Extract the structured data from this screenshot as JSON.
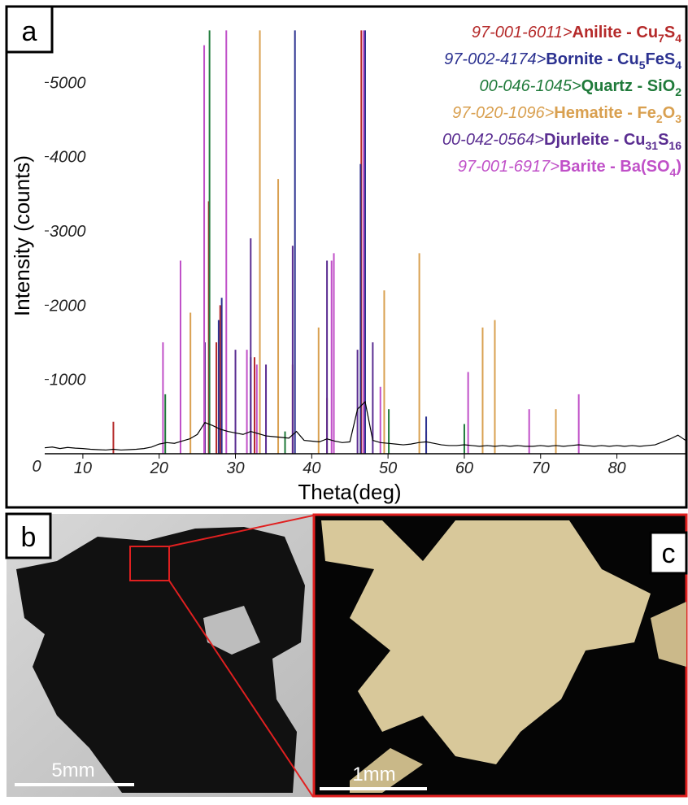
{
  "panels": {
    "a": "a",
    "b": "b",
    "c": "c"
  },
  "scale_bars": {
    "b": "5mm",
    "c": "1mm"
  },
  "chart_data": {
    "type": "xrd",
    "xlabel": "Theta(deg)",
    "ylabel": "Intensity (counts)",
    "xlim": [
      5,
      89
    ],
    "ylim": [
      0,
      6000
    ],
    "xticks": [
      10,
      20,
      30,
      40,
      50,
      60,
      70,
      80
    ],
    "yticks": [
      0,
      1000,
      2000,
      3000,
      4000,
      5000
    ],
    "measured": {
      "color": "#000000",
      "x": [
        5,
        6,
        7,
        8,
        9,
        10,
        11,
        12,
        13,
        14,
        15,
        16,
        17,
        18,
        19,
        20,
        21,
        22,
        23,
        24,
        25,
        26,
        27,
        28,
        29,
        30,
        31,
        32,
        33,
        34,
        35,
        36,
        37,
        38,
        39,
        40,
        41,
        42,
        43,
        44,
        45,
        46,
        47,
        48,
        49,
        50,
        51,
        52,
        53,
        54,
        55,
        56,
        57,
        58,
        59,
        60,
        61,
        62,
        63,
        64,
        65,
        66,
        67,
        68,
        69,
        70,
        71,
        72,
        73,
        74,
        75,
        76,
        77,
        78,
        79,
        80,
        81,
        82,
        83,
        84,
        85,
        86,
        87,
        88,
        89
      ],
      "values": [
        80,
        90,
        70,
        85,
        75,
        70,
        60,
        55,
        50,
        60,
        50,
        55,
        60,
        70,
        90,
        130,
        150,
        140,
        170,
        200,
        260,
        420,
        380,
        330,
        300,
        280,
        260,
        300,
        270,
        240,
        230,
        220,
        210,
        300,
        180,
        170,
        160,
        200,
        170,
        150,
        160,
        600,
        700,
        180,
        150,
        140,
        130,
        120,
        130,
        150,
        160,
        140,
        120,
        110,
        110,
        120,
        110,
        100,
        110,
        100,
        110,
        100,
        110,
        100,
        100,
        110,
        100,
        110,
        100,
        110,
        120,
        110,
        100,
        110,
        100,
        110,
        100,
        110,
        100,
        110,
        120,
        160,
        200,
        250,
        180
      ]
    },
    "series": [
      {
        "code": "97-001-6011>",
        "name_parts": [
          "Anilite - Cu",
          "7",
          "S",
          "4"
        ],
        "color": "#b52a2a",
        "x": [
          14,
          26.5,
          27.5,
          28,
          32.5,
          37.5,
          42,
          46.5,
          55
        ],
        "values": [
          430,
          3400,
          1500,
          2000,
          1300,
          1200,
          750,
          5700,
          300
        ]
      },
      {
        "code": "97-002-4174>",
        "name_parts": [
          "Bornite - Cu",
          "5",
          "FeS",
          "4"
        ],
        "color": "#2b3190",
        "x": [
          26,
          27.8,
          28.2,
          32,
          37.8,
          46.4,
          47,
          55
        ],
        "values": [
          1200,
          1800,
          2100,
          1300,
          5700,
          3900,
          5700,
          500
        ]
      },
      {
        "code": "00-046-1045>",
        "name_parts": [
          "Quartz - SiO",
          "2"
        ],
        "color": "#1f7a3a",
        "x": [
          20.8,
          26.6,
          36.5,
          50.1,
          60
        ],
        "values": [
          800,
          5700,
          300,
          600,
          400
        ]
      },
      {
        "code": "97-020-1096>",
        "name_parts": [
          "Hematite - Fe",
          "2",
          "O",
          "3"
        ],
        "color": "#d9a050",
        "x": [
          24.1,
          33.2,
          35.6,
          40.9,
          49.5,
          54.1,
          62.4,
          64,
          72
        ],
        "values": [
          1900,
          5700,
          3700,
          1700,
          2200,
          2700,
          1700,
          1800,
          600
        ]
      },
      {
        "code": "00-042-0564>",
        "name_parts": [
          "Djurleite - Cu",
          "31",
          "S",
          "16"
        ],
        "color": "#5a2d91",
        "x": [
          26,
          30,
          32,
          34,
          37.5,
          42,
          46,
          48
        ],
        "values": [
          1500,
          1400,
          2900,
          1200,
          2800,
          2600,
          1400,
          1500
        ]
      },
      {
        "code": "97-001-6917>",
        "name_parts": [
          "Barite - Ba(SO",
          "4",
          ")"
        ],
        "color": "#c050c8",
        "x": [
          20.5,
          22.8,
          25.9,
          28.8,
          31.5,
          32.8,
          42.6,
          42.9,
          46.8,
          49,
          60.5,
          68.5,
          75
        ],
        "values": [
          1500,
          2600,
          5500,
          5700,
          1400,
          1200,
          2600,
          2700,
          5700,
          900,
          1100,
          600,
          800
        ]
      }
    ]
  }
}
